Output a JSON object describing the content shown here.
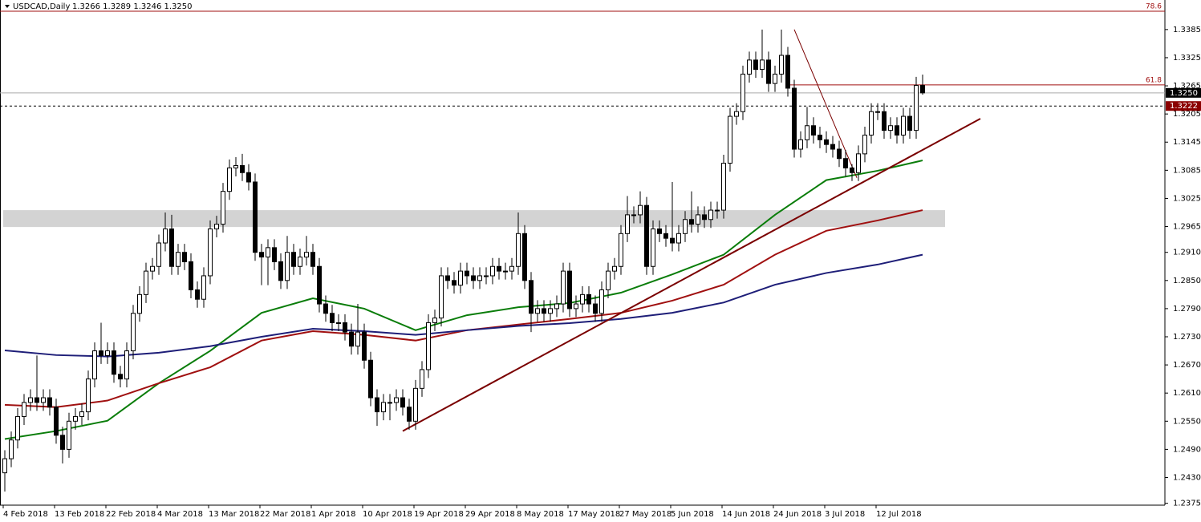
{
  "chart_data": {
    "type": "candlestick",
    "title": "USDCAD,Daily",
    "quote": "1.3266 1.3289 1.3246 1.3250",
    "categories": [
      "4 Feb 2018",
      null,
      null,
      null,
      null,
      null,
      null,
      null,
      "13 Feb 2018",
      null,
      null,
      null,
      null,
      null,
      null,
      null,
      "22 Feb 2018",
      null,
      null,
      null,
      null,
      null,
      null,
      null,
      "4 Mar 2018",
      null,
      null,
      null,
      null,
      null,
      null,
      null,
      "13 Mar 2018",
      null,
      null,
      null,
      null,
      null,
      null,
      null,
      "22 Mar 2018",
      null,
      null,
      null,
      null,
      null,
      null,
      null,
      "1 Apr 2018",
      null,
      null,
      null,
      null,
      null,
      null,
      null,
      "10 Apr 2018",
      null,
      null,
      null,
      null,
      null,
      null,
      null,
      "19 Apr 2018",
      null,
      null,
      null,
      null,
      null,
      null,
      null,
      "29 Apr 2018",
      null,
      null,
      null,
      null,
      null,
      null,
      null,
      "8 May 2018",
      null,
      null,
      null,
      null,
      null,
      null,
      null,
      "17 May 2018",
      null,
      null,
      null,
      null,
      null,
      null,
      null,
      "27 May 2018",
      null,
      null,
      null,
      null,
      null,
      null,
      null,
      "5 Jun 2018",
      null,
      null,
      null,
      null,
      null,
      null,
      null,
      "14 Jun 2018",
      null,
      null,
      null,
      null,
      null,
      null,
      null,
      "24 Jun 2018",
      null,
      null,
      null,
      null,
      null,
      null,
      null,
      "3 Jul 2018",
      null,
      null,
      null,
      null,
      null,
      null,
      null,
      "12 Jul 2018",
      null,
      null,
      null,
      null,
      null,
      null,
      null
    ],
    "open": [
      1.244,
      1.247,
      1.251,
      1.256,
      1.259,
      1.26,
      1.259,
      1.26,
      1.258,
      1.252,
      1.249,
      1.255,
      1.256,
      1.257,
      1.264,
      1.27,
      1.269,
      1.27,
      1.265,
      1.264,
      1.27,
      1.278,
      1.282,
      1.287,
      1.288,
      1.293,
      1.296,
      1.288,
      1.291,
      1.289,
      1.283,
      1.281,
      1.286,
      1.296,
      1.297,
      1.304,
      1.309,
      1.3095,
      1.308,
      1.306,
      1.291,
      1.29,
      1.292,
      1.289,
      1.285,
      1.291,
      1.288,
      1.29,
      1.291,
      1.288,
      1.28,
      1.278,
      1.276,
      1.276,
      1.274,
      1.271,
      1.274,
      1.268,
      1.26,
      1.257,
      1.259,
      1.259,
      1.26,
      1.258,
      1.255,
      1.262,
      1.266,
      1.276,
      1.277,
      1.286,
      1.285,
      1.284,
      1.287,
      1.286,
      1.285,
      1.286,
      1.286,
      1.288,
      1.287,
      1.287,
      1.288,
      1.295,
      1.285,
      1.278,
      1.279,
      1.278,
      1.279,
      1.28,
      1.287,
      1.279,
      1.28,
      1.282,
      1.28,
      1.278,
      1.283,
      1.287,
      1.288,
      1.295,
      1.299,
      1.299,
      1.301,
      1.288,
      1.296,
      1.295,
      1.294,
      1.293,
      1.295,
      1.298,
      1.297,
      1.299,
      1.298,
      1.3,
      1.3,
      1.31,
      1.32,
      1.321,
      1.329,
      1.332,
      1.33,
      1.332,
      1.327,
      1.329,
      1.333,
      1.326,
      1.313,
      1.315,
      1.318,
      1.316,
      1.315,
      1.314,
      1.313,
      1.311,
      1.309,
      1.308,
      1.312,
      1.316,
      1.321,
      1.321,
      1.317,
      1.318,
      1.316,
      1.32,
      1.317,
      1.3266
    ],
    "high": [
      1.2488,
      1.2528,
      1.2578,
      1.2608,
      1.2618,
      1.269,
      1.2618,
      1.2618,
      1.2598,
      1.2538,
      1.2568,
      1.2578,
      1.2588,
      1.2658,
      1.2718,
      1.276,
      1.2718,
      1.2718,
      1.2668,
      1.2718,
      1.2798,
      1.2838,
      1.2888,
      1.2898,
      1.2948,
      1.2995,
      1.299,
      1.2928,
      1.2928,
      1.2908,
      1.2848,
      1.2878,
      1.2978,
      1.2988,
      1.3058,
      1.3108,
      1.3113,
      1.312,
      1.3098,
      1.3078,
      1.2928,
      1.2938,
      1.2938,
      1.2908,
      1.2945,
      1.2928,
      1.2918,
      1.2945,
      1.2928,
      1.2898,
      1.2818,
      1.2798,
      1.2778,
      1.2778,
      1.2758,
      1.28,
      1.2758,
      1.2698,
      1.2618,
      1.2608,
      1.2608,
      1.2618,
      1.2618,
      1.2598,
      1.2638,
      1.2678,
      1.2778,
      1.2788,
      1.2878,
      1.2878,
      1.2868,
      1.2888,
      1.2888,
      1.2878,
      1.2878,
      1.2878,
      1.2898,
      1.2898,
      1.2888,
      1.2898,
      1.2995,
      1.2968,
      1.2868,
      1.2808,
      1.2808,
      1.2808,
      1.2818,
      1.2888,
      1.2888,
      1.2818,
      1.2838,
      1.2838,
      1.2818,
      1.2848,
      1.2888,
      1.2898,
      1.2968,
      1.303,
      1.3008,
      1.304,
      1.3028,
      1.2978,
      1.2978,
      1.2968,
      1.306,
      1.2968,
      1.2998,
      1.304,
      1.3008,
      1.3008,
      1.3018,
      1.3018,
      1.3118,
      1.3218,
      1.3228,
      1.3308,
      1.3338,
      1.3338,
      1.3385,
      1.3338,
      1.3308,
      1.3385,
      1.3348,
      1.3278,
      1.3168,
      1.322,
      1.3198,
      1.3178,
      1.3168,
      1.3158,
      1.3148,
      1.3128,
      1.3098,
      1.3138,
      1.3178,
      1.3228,
      1.3228,
      1.3228,
      1.3198,
      1.3198,
      1.3218,
      1.3218,
      1.3284,
      1.3289
    ],
    "low": [
      1.24,
      1.2452,
      1.2492,
      1.2542,
      1.2572,
      1.2572,
      1.2572,
      1.2562,
      1.2502,
      1.246,
      1.2472,
      1.2532,
      1.2542,
      1.2552,
      1.2622,
      1.2672,
      1.2672,
      1.2632,
      1.2622,
      1.2622,
      1.2682,
      1.2762,
      1.2802,
      1.2852,
      1.2862,
      1.2912,
      1.2862,
      1.2862,
      1.2872,
      1.2812,
      1.2792,
      1.2792,
      1.2842,
      1.2942,
      1.2952,
      1.3022,
      1.3072,
      1.3062,
      1.3042,
      1.2892,
      1.284,
      1.284,
      1.2872,
      1.2832,
      1.2832,
      1.2862,
      1.2862,
      1.2882,
      1.2862,
      1.2782,
      1.2762,
      1.2742,
      1.2742,
      1.2722,
      1.2692,
      1.2692,
      1.2662,
      1.2582,
      1.254,
      1.2552,
      1.2552,
      1.2572,
      1.2562,
      1.2532,
      1.2532,
      1.2602,
      1.2642,
      1.2742,
      1.2752,
      1.2832,
      1.2822,
      1.2822,
      1.2842,
      1.2832,
      1.2832,
      1.2842,
      1.2842,
      1.2852,
      1.2852,
      1.2852,
      1.2862,
      1.2832,
      1.274,
      1.2762,
      1.2762,
      1.2762,
      1.2772,
      1.2782,
      1.2772,
      1.2772,
      1.2782,
      1.2782,
      1.2762,
      1.2762,
      1.2812,
      1.2852,
      1.2862,
      1.2932,
      1.2972,
      1.2972,
      1.2862,
      1.2862,
      1.2932,
      1.2922,
      1.2912,
      1.2912,
      1.2932,
      1.2952,
      1.2952,
      1.2962,
      1.2962,
      1.2982,
      1.2982,
      1.3082,
      1.3182,
      1.3192,
      1.3272,
      1.3282,
      1.3282,
      1.3252,
      1.3252,
      1.3272,
      1.3242,
      1.3112,
      1.3112,
      1.3132,
      1.3142,
      1.3132,
      1.3122,
      1.3112,
      1.3092,
      1.3072,
      1.3062,
      1.3062,
      1.3102,
      1.3142,
      1.3192,
      1.3152,
      1.3152,
      1.3142,
      1.3142,
      1.3152,
      1.3152,
      1.3246
    ],
    "close": [
      1.247,
      1.251,
      1.256,
      1.259,
      1.26,
      1.259,
      1.26,
      1.258,
      1.252,
      1.249,
      1.255,
      1.256,
      1.257,
      1.264,
      1.27,
      1.269,
      1.27,
      1.265,
      1.264,
      1.27,
      1.278,
      1.282,
      1.287,
      1.288,
      1.293,
      1.296,
      1.288,
      1.291,
      1.289,
      1.283,
      1.281,
      1.286,
      1.296,
      1.297,
      1.304,
      1.309,
      1.3095,
      1.308,
      1.306,
      1.291,
      1.29,
      1.292,
      1.289,
      1.285,
      1.291,
      1.288,
      1.29,
      1.291,
      1.288,
      1.28,
      1.278,
      1.276,
      1.276,
      1.274,
      1.271,
      1.274,
      1.268,
      1.26,
      1.257,
      1.259,
      1.259,
      1.26,
      1.258,
      1.255,
      1.262,
      1.266,
      1.276,
      1.277,
      1.286,
      1.285,
      1.284,
      1.287,
      1.286,
      1.285,
      1.286,
      1.286,
      1.288,
      1.287,
      1.287,
      1.288,
      1.295,
      1.285,
      1.278,
      1.279,
      1.278,
      1.279,
      1.28,
      1.287,
      1.279,
      1.28,
      1.282,
      1.28,
      1.278,
      1.283,
      1.287,
      1.288,
      1.295,
      1.299,
      1.299,
      1.301,
      1.288,
      1.296,
      1.295,
      1.294,
      1.293,
      1.295,
      1.298,
      1.297,
      1.299,
      1.298,
      1.3,
      1.3,
      1.31,
      1.32,
      1.321,
      1.329,
      1.332,
      1.33,
      1.332,
      1.327,
      1.329,
      1.333,
      1.326,
      1.313,
      1.315,
      1.318,
      1.316,
      1.315,
      1.314,
      1.313,
      1.311,
      1.309,
      1.308,
      1.312,
      1.316,
      1.321,
      1.321,
      1.317,
      1.318,
      1.316,
      1.32,
      1.317,
      1.3266,
      1.325
    ],
    "ylim": [
      1.2371,
      1.3448
    ],
    "yticks": [
      1.3385,
      1.3325,
      1.3265,
      1.3205,
      1.3145,
      1.3085,
      1.3025,
      1.2965,
      {
        "value": 1.291,
        "label": "1.2910"
      },
      {
        "value": 1.285,
        "label": "1.2850"
      },
      {
        "value": 1.279,
        "label": "1.2790"
      },
      {
        "value": 1.273,
        "label": "1.2730"
      },
      {
        "value": 1.267,
        "label": "1.2670"
      },
      {
        "value": 1.261,
        "label": "1.2610"
      },
      {
        "value": 1.255,
        "label": "1.2550"
      },
      {
        "value": 1.249,
        "label": "1.2490"
      },
      {
        "value": 1.243,
        "label": "1.2430"
      },
      1.2375
    ],
    "lines": [
      {
        "color": "#0a7d0a",
        "x": [
          0,
          8,
          16,
          24,
          32,
          40,
          48,
          56,
          64,
          72,
          80,
          88,
          96,
          104,
          112,
          120,
          128,
          136,
          143
        ],
        "values": [
          1.2512,
          1.2529,
          1.2551,
          1.2631,
          1.27,
          1.2781,
          1.2812,
          1.279,
          1.2744,
          1.2776,
          1.2793,
          1.2802,
          1.2824,
          1.2863,
          1.2905,
          1.299,
          1.3064,
          1.3084,
          1.3106
        ]
      },
      {
        "color": "#a01010",
        "x": [
          0,
          8,
          16,
          24,
          32,
          40,
          48,
          56,
          64,
          72,
          80,
          88,
          96,
          104,
          112,
          120,
          128,
          136,
          143
        ],
        "values": [
          1.2585,
          1.258,
          1.2594,
          1.2631,
          1.2665,
          1.2722,
          1.2742,
          1.2734,
          1.2722,
          1.2744,
          1.2756,
          1.2768,
          1.2781,
          1.2807,
          1.2841,
          1.2905,
          1.2956,
          1.2978,
          1.3
        ]
      },
      {
        "color": "#1e1e78",
        "x": [
          0,
          8,
          16,
          24,
          32,
          40,
          48,
          56,
          64,
          72,
          80,
          88,
          96,
          104,
          112,
          120,
          128,
          136,
          143
        ],
        "values": [
          1.2701,
          1.2691,
          1.2688,
          1.2696,
          1.271,
          1.273,
          1.2747,
          1.2742,
          1.2734,
          1.2744,
          1.2753,
          1.2759,
          1.2768,
          1.2781,
          1.2803,
          1.2841,
          1.2866,
          1.2884,
          1.2905
        ]
      }
    ],
    "trendlines": [
      {
        "color": "#7a0000",
        "x": [
          62,
          152
        ],
        "values": [
          1.2529,
          1.3195
        ]
      },
      {
        "color": "#7a0000",
        "x": [
          123,
          132.75
        ],
        "values": [
          1.3385,
          1.3069
        ]
      }
    ],
    "zone": {
      "color": "#d3d3d3",
      "values": [
        1.2964,
        1.3
      ]
    },
    "levels": [
      {
        "label": "78.6",
        "value": 1.3424,
        "color": "#a01010"
      },
      {
        "label": "61.8",
        "value": 1.3267,
        "color": "#a01010"
      }
    ],
    "price_tags": [
      {
        "label": "1.3250",
        "value": 1.325,
        "color": "#000000",
        "dashed": false
      },
      {
        "label": "1.3222",
        "value": 1.3222,
        "color": "#8b0000",
        "dashed": true
      }
    ]
  }
}
